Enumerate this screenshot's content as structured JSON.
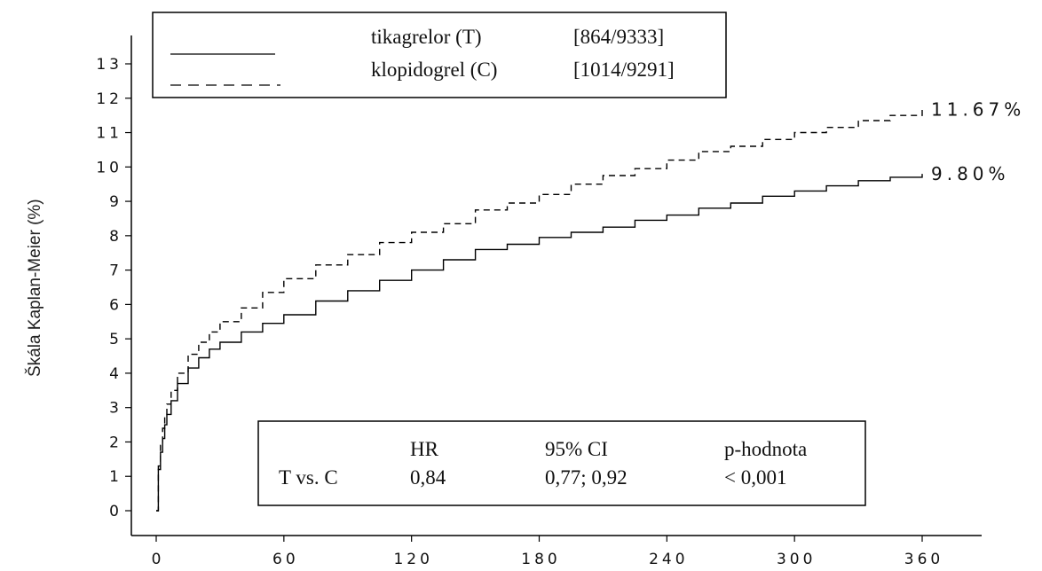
{
  "chart_data": {
    "type": "line",
    "ylabel": "Škála Kaplan-Meier (%)",
    "xlim": [
      0,
      360
    ],
    "ylim": [
      0,
      13
    ],
    "xticks": [
      0,
      60,
      120,
      180,
      240,
      300,
      360
    ],
    "yticks": [
      0,
      1,
      2,
      3,
      4,
      5,
      6,
      7,
      8,
      9,
      10,
      11,
      12,
      13
    ],
    "xtick_labels": [
      "0",
      "60",
      "120",
      "180",
      "240",
      "300",
      "360"
    ],
    "ytick_labels": [
      "0",
      "1",
      "2",
      "3",
      "4",
      "5",
      "6",
      "7",
      "8",
      "9",
      "10",
      "11",
      "12",
      "13"
    ],
    "grid": false,
    "series": [
      {
        "name": "tikagrelor (T)",
        "events": "[864/9333]",
        "style": "solid",
        "end_label": "9.80%",
        "x": [
          0,
          1,
          2,
          3,
          4,
          5,
          7,
          10,
          15,
          20,
          25,
          30,
          40,
          50,
          60,
          75,
          90,
          105,
          120,
          135,
          150,
          165,
          180,
          195,
          210,
          225,
          240,
          255,
          270,
          285,
          300,
          315,
          330,
          345,
          360
        ],
        "y": [
          0,
          1.2,
          1.7,
          2.1,
          2.5,
          2.8,
          3.2,
          3.7,
          4.15,
          4.45,
          4.7,
          4.9,
          5.2,
          5.45,
          5.7,
          6.1,
          6.4,
          6.7,
          7.0,
          7.3,
          7.6,
          7.75,
          7.95,
          8.1,
          8.25,
          8.45,
          8.6,
          8.8,
          8.95,
          9.15,
          9.3,
          9.45,
          9.6,
          9.7,
          9.8
        ]
      },
      {
        "name": "klopidogrel (C)",
        "events": "[1014/9291]",
        "style": "dashed",
        "end_label": "11.67%",
        "x": [
          0,
          1,
          2,
          3,
          4,
          5,
          7,
          10,
          15,
          20,
          25,
          30,
          40,
          50,
          60,
          75,
          90,
          105,
          120,
          135,
          150,
          165,
          180,
          195,
          210,
          225,
          240,
          255,
          270,
          285,
          300,
          315,
          330,
          345,
          360
        ],
        "y": [
          0,
          1.3,
          1.9,
          2.4,
          2.8,
          3.1,
          3.5,
          4.0,
          4.55,
          4.9,
          5.2,
          5.5,
          5.9,
          6.35,
          6.75,
          7.15,
          7.45,
          7.8,
          8.1,
          8.35,
          8.75,
          8.95,
          9.2,
          9.5,
          9.75,
          9.95,
          10.2,
          10.45,
          10.6,
          10.8,
          11.0,
          11.15,
          11.35,
          11.5,
          11.67
        ]
      }
    ],
    "legend": {
      "placement": "top-left",
      "rows": [
        {
          "name": "tikagrelor (T)",
          "events": "[864/9333]",
          "style": "solid"
        },
        {
          "name": "klopidogrel (C)",
          "events": "[1014/9291]",
          "style": "dashed"
        }
      ]
    },
    "stats_table": {
      "placement": "bottom-center",
      "headers": [
        "",
        "HR",
        "95% CI",
        "p-hodnota"
      ],
      "row": [
        "T vs. C",
        "0,84",
        "0,77; 0,92",
        "< 0,001"
      ]
    }
  }
}
